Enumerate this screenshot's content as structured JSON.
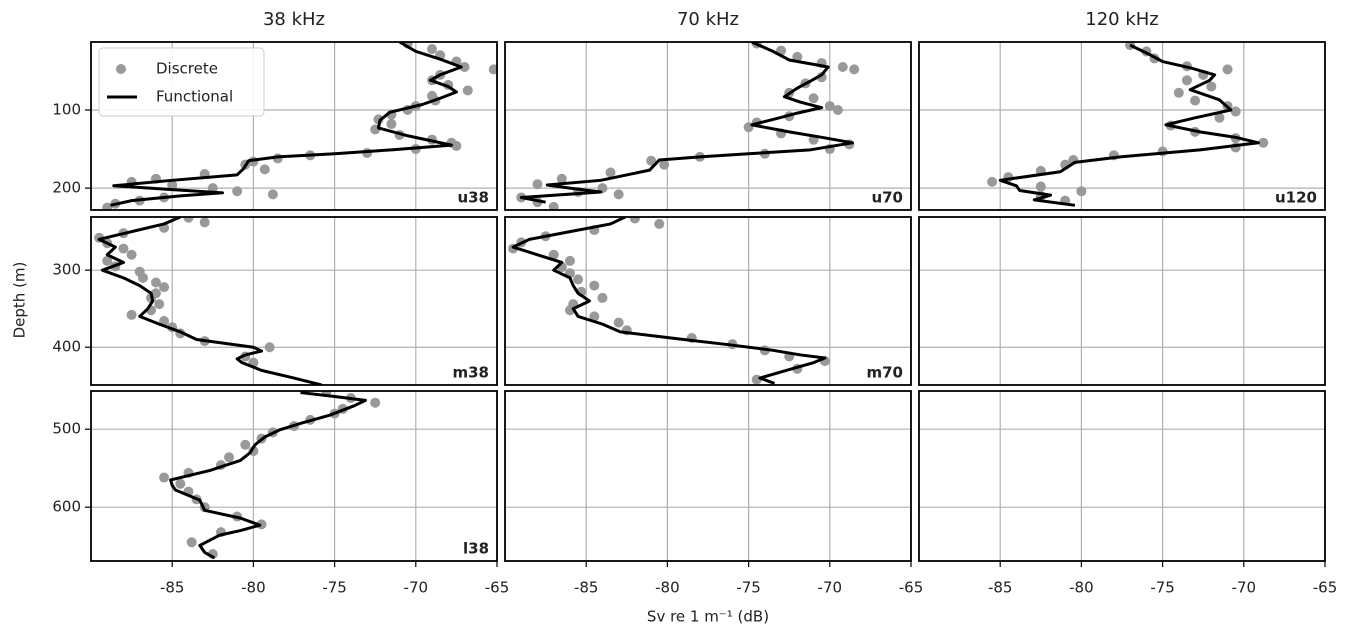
{
  "figure": {
    "xlabel": "Sv re 1 m⁻¹ (dB)",
    "ylabel": "Depth (m)"
  },
  "chart_data": [
    {
      "type": "line",
      "title": "38 kHz",
      "label": "u38",
      "xlim": [
        -90,
        -65
      ],
      "xticks": [
        -85,
        -80,
        -75,
        -70,
        -65
      ],
      "ylim": [
        13,
        228
      ],
      "yticks": [
        100,
        200
      ],
      "y_inverted": true,
      "grid": true,
      "legend": "upper left",
      "series": [
        {
          "name": "Discrete",
          "type": "scatter",
          "color": "#999999",
          "x": [
            -70.5,
            -69,
            -68.5,
            -67.5,
            -67,
            -65.2,
            -68.5,
            -69,
            -68,
            -66.8,
            -69,
            -68.8,
            -70,
            -70.5,
            -71.5,
            -72.3,
            -71.5,
            -72.5,
            -71,
            -69,
            -67.8,
            -67.5,
            -70,
            -73,
            -76.5,
            -78.5,
            -80,
            -80.5,
            -79.3,
            -83,
            -86,
            -87.5,
            -85,
            -82.5,
            -81,
            -78.8,
            -85.5,
            -87,
            -88.5,
            -89
          ],
          "y": [
            15,
            22,
            30,
            38,
            45,
            48,
            55,
            62,
            68,
            75,
            82,
            88,
            95,
            100,
            106,
            112,
            118,
            125,
            132,
            138,
            142,
            146,
            150,
            155,
            158,
            162,
            166,
            170,
            176,
            182,
            188,
            192,
            196,
            200,
            204,
            208,
            212,
            216,
            220,
            225
          ]
        },
        {
          "name": "Functional",
          "type": "line",
          "color": "#000000",
          "x": [
            -71,
            -70,
            -68.5,
            -67.2,
            -68.5,
            -69.1,
            -68,
            -67.5,
            -68.5,
            -69.6,
            -71.6,
            -72.2,
            -72.3,
            -70.5,
            -67.8,
            -71.5,
            -75,
            -78.5,
            -80.3,
            -80.6,
            -81,
            -85,
            -88.6,
            -85,
            -81.9,
            -84.5,
            -87.5,
            -88.8
          ],
          "y": [
            13,
            25,
            35,
            45,
            55,
            62,
            70,
            77,
            85,
            93,
            103,
            113,
            123,
            133,
            145,
            151,
            156,
            160,
            165,
            175,
            183,
            190,
            197,
            202,
            206,
            210,
            216,
            222
          ]
        }
      ]
    },
    {
      "type": "line",
      "title": "70 kHz",
      "label": "u70",
      "xlim": [
        -90,
        -65
      ],
      "xticks": [
        -85,
        -80,
        -75,
        -70,
        -65
      ],
      "ylim": [
        13,
        228
      ],
      "yticks": [
        100,
        200
      ],
      "y_inverted": true,
      "grid": true,
      "series": [
        {
          "type": "scatter",
          "color": "#999999",
          "x": [
            -74.5,
            -73,
            -72,
            -70.5,
            -69.2,
            -68.5,
            -70.5,
            -71.5,
            -72.5,
            -71,
            -70,
            -69.5,
            -72.5,
            -74.5,
            -75,
            -73,
            -71,
            -68.8,
            -70,
            -74,
            -78,
            -81,
            -80.2,
            -83.5,
            -86.5,
            -88,
            -84,
            -85.5,
            -83,
            -89,
            -88,
            -87
          ],
          "y": [
            15,
            24,
            32,
            40,
            45,
            48,
            58,
            66,
            78,
            85,
            95,
            100,
            108,
            116,
            122,
            130,
            138,
            144,
            150,
            156,
            160,
            165,
            170,
            180,
            188,
            195,
            200,
            205,
            208,
            212,
            218,
            224
          ]
        },
        {
          "type": "line",
          "color": "#000000",
          "x": [
            -74.8,
            -73.5,
            -72.5,
            -70.1,
            -70.5,
            -71.1,
            -72,
            -72.8,
            -71.8,
            -70.5,
            -72,
            -73.1,
            -74.8,
            -72.5,
            -70.5,
            -68.6,
            -71.2,
            -75,
            -78,
            -80.5,
            -81.1,
            -84.1,
            -87.4,
            -86,
            -84.1,
            -89,
            -87.5
          ],
          "y": [
            13,
            25,
            36,
            45,
            55,
            62,
            72,
            83,
            90,
            97,
            104,
            110,
            119,
            128,
            135,
            142,
            151,
            156,
            160,
            164,
            177,
            190,
            196,
            200,
            205,
            212,
            218
          ]
        }
      ]
    },
    {
      "type": "line",
      "title": "120 kHz",
      "label": "u120",
      "xlim": [
        -90,
        -65
      ],
      "xticks": [
        -85,
        -80,
        -75,
        -70,
        -65
      ],
      "ylim": [
        13,
        228
      ],
      "yticks": [
        100,
        200
      ],
      "y_inverted": true,
      "grid": true,
      "series": [
        {
          "type": "scatter",
          "color": "#999999",
          "x": [
            -77,
            -76,
            -75.5,
            -73.5,
            -71,
            -72.5,
            -73.5,
            -72,
            -74,
            -73,
            -71,
            -70.5,
            -71.5,
            -74.5,
            -73,
            -70.5,
            -68.8,
            -70.5,
            -75,
            -78,
            -80.5,
            -81,
            -82.5,
            -84.5,
            -85.5,
            -82.5,
            -80,
            -82.5,
            -81
          ],
          "y": [
            17,
            25,
            34,
            44,
            48,
            55,
            62,
            70,
            78,
            88,
            95,
            102,
            110,
            120,
            128,
            136,
            142,
            148,
            153,
            158,
            164,
            170,
            178,
            186,
            192,
            198,
            204,
            210,
            216
          ]
        },
        {
          "type": "line",
          "color": "#000000",
          "x": [
            -77,
            -75.8,
            -75,
            -73.3,
            -71.8,
            -72.1,
            -73.3,
            -71.5,
            -70.8,
            -73,
            -74.8,
            -72.7,
            -70.5,
            -69.1,
            -72.7,
            -77.6,
            -80.4,
            -81.3,
            -85,
            -84,
            -83.8,
            -81.9,
            -82.9,
            -80.4
          ],
          "y": [
            17,
            29,
            38,
            46,
            55,
            62,
            74,
            87,
            100,
            110,
            119,
            128,
            135,
            142,
            151,
            160,
            167,
            179,
            190,
            197,
            203,
            209,
            215,
            222
          ]
        }
      ]
    },
    {
      "type": "line",
      "label": "m38",
      "xlim": [
        -90,
        -65
      ],
      "xticks": [
        -85,
        -80,
        -75,
        -70,
        -65
      ],
      "ylim": [
        231,
        449
      ],
      "yticks": [
        300,
        400
      ],
      "y_inverted": true,
      "grid": true,
      "series": [
        {
          "type": "scatter",
          "color": "#999999",
          "x": [
            -84,
            -83,
            -85.5,
            -88,
            -89.5,
            -89,
            -88,
            -87.5,
            -89,
            -88.5,
            -87,
            -86.8,
            -86,
            -85.5,
            -86,
            -86.3,
            -85.8,
            -86.3,
            -87.5,
            -85.5,
            -85,
            -84.5,
            -83,
            -79,
            -80.5,
            -80
          ],
          "y": [
            232,
            238,
            245,
            252,
            258,
            265,
            272,
            280,
            288,
            295,
            302,
            310,
            316,
            322,
            330,
            336,
            344,
            352,
            358,
            366,
            374,
            382,
            392,
            400,
            412,
            420
          ]
        },
        {
          "type": "line",
          "color": "#000000",
          "x": [
            -84.5,
            -85.5,
            -87.5,
            -89.5,
            -88.5,
            -89,
            -88,
            -89.3,
            -88,
            -87,
            -86.3,
            -86.2,
            -86.5,
            -87,
            -85.8,
            -84.5,
            -83.5,
            -80,
            -79.5,
            -80.5,
            -81,
            -80.7,
            -79.5,
            -77.5,
            -75.8
          ],
          "y": [
            231,
            240,
            250,
            260,
            270,
            280,
            290,
            300,
            310,
            320,
            330,
            340,
            350,
            360,
            370,
            380,
            390,
            400,
            405,
            410,
            415,
            420,
            430,
            440,
            449
          ]
        }
      ]
    },
    {
      "type": "line",
      "label": "m70",
      "xlim": [
        -90,
        -65
      ],
      "xticks": [
        -85,
        -80,
        -75,
        -70,
        -65
      ],
      "ylim": [
        231,
        449
      ],
      "yticks": [
        300,
        400
      ],
      "y_inverted": true,
      "grid": true,
      "series": [
        {
          "type": "scatter",
          "color": "#999999",
          "x": [
            -82,
            -80.5,
            -84.5,
            -87.5,
            -89,
            -89.5,
            -87,
            -86,
            -86.5,
            -86,
            -85.5,
            -84.5,
            -85.3,
            -84,
            -85.8,
            -86,
            -84.5,
            -83,
            -82.5,
            -78.5,
            -76,
            -74,
            -72.5,
            -70.3,
            -72,
            -74.5
          ],
          "y": [
            233,
            240,
            248,
            256,
            264,
            272,
            280,
            288,
            296,
            304,
            312,
            320,
            328,
            336,
            344,
            352,
            360,
            368,
            378,
            388,
            396,
            404,
            412,
            418,
            428,
            442
          ]
        },
        {
          "type": "line",
          "color": "#000000",
          "x": [
            -82.6,
            -83.5,
            -86,
            -88.5,
            -89.5,
            -88,
            -86.5,
            -87,
            -86,
            -85.8,
            -85.5,
            -84.8,
            -85.8,
            -85.5,
            -84,
            -82.9,
            -79,
            -76.1,
            -73.5,
            -71.8,
            -70.3,
            -71,
            -72.5,
            -74.3,
            -73.4
          ],
          "y": [
            231,
            240,
            250,
            260,
            270,
            280,
            290,
            300,
            310,
            320,
            330,
            340,
            350,
            360,
            370,
            380,
            390,
            397,
            404,
            410,
            414,
            420,
            429,
            440,
            447
          ]
        }
      ]
    },
    {
      "type": "line",
      "xlim": [
        -90,
        -65
      ],
      "xticks": [
        -85,
        -80,
        -75,
        -70,
        -65
      ],
      "ylim": [
        231,
        449
      ],
      "yticks": [
        300,
        400
      ],
      "y_inverted": true,
      "grid": true
    },
    {
      "type": "line",
      "label": "l38",
      "xlim": [
        -90,
        -65
      ],
      "xticks": [
        -85,
        -80,
        -75,
        -70,
        -65
      ],
      "ylim": [
        451,
        669
      ],
      "yticks": [
        500,
        600
      ],
      "y_inverted": true,
      "grid": true,
      "series": [
        {
          "type": "scatter",
          "color": "#999999",
          "x": [
            -75.5,
            -74,
            -72.5,
            -74.5,
            -75,
            -76.5,
            -77.5,
            -78.8,
            -79.5,
            -80.5,
            -80,
            -81.5,
            -82,
            -84,
            -85.5,
            -84.5,
            -84,
            -83.5,
            -83,
            -81,
            -79.5,
            -82,
            -83.8,
            -82.5
          ],
          "y": [
            452,
            460,
            466,
            474,
            480,
            488,
            496,
            504,
            512,
            520,
            528,
            536,
            546,
            556,
            562,
            570,
            580,
            590,
            600,
            612,
            622,
            632,
            645,
            660
          ]
        },
        {
          "type": "line",
          "color": "#000000",
          "x": [
            -77.1,
            -75,
            -73.1,
            -73.8,
            -75.3,
            -77,
            -78.4,
            -79.3,
            -79.9,
            -80.2,
            -80.8,
            -82.7,
            -85.1,
            -85,
            -84.8,
            -83.3,
            -83,
            -80.8,
            -79.6,
            -80.8,
            -82.1,
            -83.3,
            -83,
            -82.4
          ],
          "y": [
            453,
            458,
            463,
            470,
            482,
            492,
            501,
            510,
            520,
            530,
            540,
            553,
            565,
            572,
            578,
            591,
            604,
            614,
            623,
            630,
            636,
            649,
            658,
            665
          ]
        }
      ]
    },
    {
      "type": "line",
      "xlim": [
        -90,
        -65
      ],
      "xticks": [
        -85,
        -80,
        -75,
        -70,
        -65
      ],
      "ylim": [
        451,
        669
      ],
      "yticks": [
        500,
        600
      ],
      "y_inverted": true,
      "grid": true
    },
    {
      "type": "line",
      "xlim": [
        -90,
        -65
      ],
      "xticks": [
        -85,
        -80,
        -75,
        -70,
        -65
      ],
      "ylim": [
        451,
        669
      ],
      "yticks": [
        500,
        600
      ],
      "y_inverted": true,
      "grid": true
    }
  ]
}
